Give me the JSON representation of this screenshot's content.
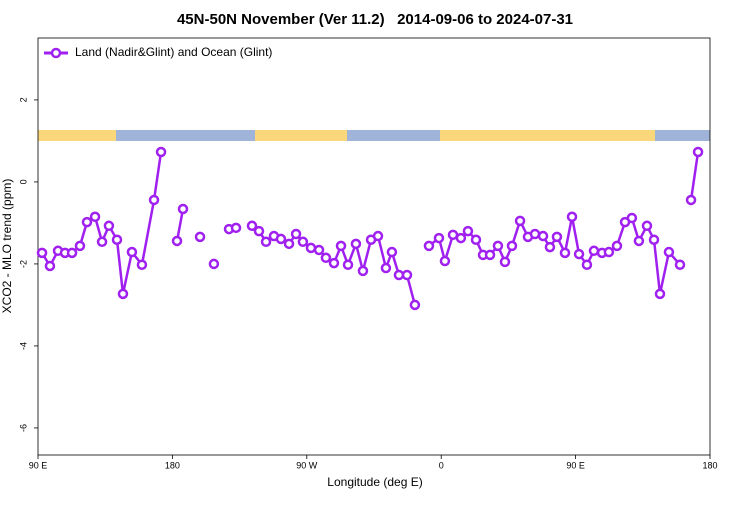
{
  "chart_data": {
    "type": "line",
    "title": "45N-50N November (Ver 11.2)   2014-09-06 to 2024-07-31",
    "x_label": "Longitude (deg E)",
    "y_label": "XCO2 - MLO trend (ppm)",
    "xlim": [
      90,
      540
    ],
    "ylim": [
      -6.66,
      3.51
    ],
    "xticks": [
      {
        "value": 90,
        "label": "90 E"
      },
      180,
      {
        "value": 270,
        "label": "90 W"
      },
      {
        "value": 360,
        "label": "0"
      },
      {
        "value": 450,
        "label": "90 E"
      },
      {
        "value": 540,
        "label": "180"
      }
    ],
    "yticks": [
      2,
      0,
      -2,
      -4,
      -6
    ],
    "grid": false,
    "legend": "top-left",
    "x": [
      92.7,
      98.0,
      103.4,
      108.1,
      112.8,
      118.1,
      122.8,
      128.2,
      132.9,
      137.5,
      142.9,
      146.9,
      152.9,
      159.6,
      167.7,
      172.4,
      177.8,
      183.1,
      187.1,
      192.8,
      198.5,
      203.2,
      207.8,
      212.9,
      217.9,
      222.6,
      228.0,
      233.3,
      238.0,
      242.7,
      248.0,
      252.7,
      258.1,
      262.8,
      267.4,
      272.8,
      278.2,
      282.8,
      288.2,
      292.9,
      297.6,
      302.9,
      307.6,
      313.0,
      317.7,
      323.0,
      327.0,
      331.7,
      337.1,
      342.4,
      347.1,
      351.8,
      358.5,
      362.5,
      367.9,
      373.2,
      377.9,
      383.3,
      388.0,
      392.7,
      398.0,
      402.7,
      407.4,
      412.8,
      418.1,
      422.8,
      428.2,
      432.8,
      437.5,
      442.9,
      447.6,
      452.3,
      457.6,
      462.3,
      467.7,
      472.3,
      477.7,
      483.1,
      487.7,
      492.4,
      497.8,
      502.5,
      506.5,
      512.5,
      519.9,
      523.6,
      527.3,
      532.0
    ],
    "series": [
      {
        "name": "Land (Nadir&Glint) and Ocean (Glint)",
        "color": "#a020f0",
        "values": [
          -1.73,
          -2.05,
          -1.68,
          -1.73,
          -1.73,
          -1.56,
          -0.98,
          -0.85,
          -1.46,
          -1.07,
          -1.41,
          -2.73,
          -1.71,
          -2.02,
          -0.44,
          0.73,
          null,
          -1.44,
          -0.66,
          null,
          -1.34,
          null,
          -2.0,
          null,
          -1.15,
          -1.12,
          null,
          -1.07,
          -1.2,
          -1.46,
          -1.32,
          -1.39,
          -1.51,
          -1.27,
          -1.46,
          -1.61,
          -1.66,
          -1.85,
          -1.98,
          -1.56,
          -2.02,
          -1.51,
          -2.17,
          -1.41,
          -1.32,
          -2.1,
          -1.71,
          -2.27,
          -2.27,
          -3.0,
          null,
          -1.56,
          -1.37,
          -1.93,
          -1.29,
          -1.37,
          -1.2,
          -1.41,
          -1.78,
          -1.78,
          -1.56,
          -1.95,
          -1.56,
          -0.95,
          -1.34,
          -1.27,
          -1.32,
          -1.59,
          -1.34,
          -1.73,
          -0.85,
          -1.76,
          -2.02,
          -1.68,
          -1.73,
          -1.71,
          -1.56,
          -0.98,
          -0.88,
          -1.44,
          -1.07,
          -1.41,
          -2.73,
          -1.71,
          -2.02,
          null,
          -0.44,
          0.73
        ]
      }
    ]
  }
}
